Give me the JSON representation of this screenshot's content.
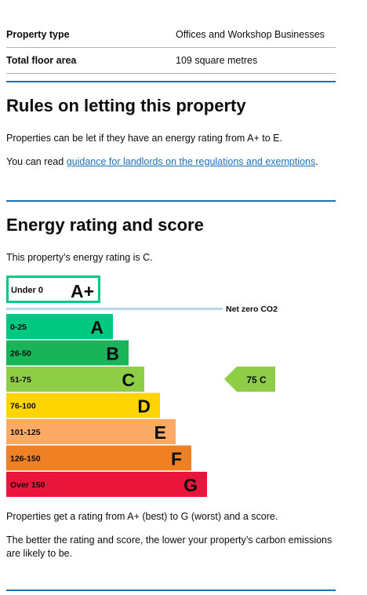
{
  "summary": {
    "rows": [
      {
        "label": "Property type",
        "value": "Offices and Workshop Businesses"
      },
      {
        "label": "Total floor area",
        "value": "109 square metres"
      }
    ]
  },
  "rules": {
    "heading": "Rules on letting this property",
    "para1": "Properties can be let if they have an energy rating from A+ to E.",
    "para2_prefix": "You can read ",
    "para2_link": "guidance for landlords on the regulations and exemptions",
    "para2_suffix": "."
  },
  "energy": {
    "heading": "Energy rating and score",
    "intro": "This property’s energy rating is C.",
    "net_zero_label": "Net zero CO2",
    "top_band": {
      "range": "Under 0",
      "letter": "A+",
      "color": "#00c781"
    },
    "bands": [
      {
        "range": "0-25",
        "letter": "A",
        "color": "#00c781"
      },
      {
        "range": "26-50",
        "letter": "B",
        "color": "#19b459"
      },
      {
        "range": "51-75",
        "letter": "C",
        "color": "#8dce46"
      },
      {
        "range": "76-100",
        "letter": "D",
        "color": "#ffd500"
      },
      {
        "range": "101-125",
        "letter": "E",
        "color": "#fcaa65"
      },
      {
        "range": "126-150",
        "letter": "F",
        "color": "#ef8023"
      },
      {
        "range": "Over 150",
        "letter": "G",
        "color": "#e9153b"
      }
    ],
    "current": {
      "score": "75",
      "letter": "C",
      "band_index": 2,
      "color": "#8dce46"
    },
    "outro1": "Properties get a rating from A+ (best) to G (worst) and a score.",
    "outro2": "The better the rating and score, the lower your property’s carbon emissions are likely to be."
  }
}
